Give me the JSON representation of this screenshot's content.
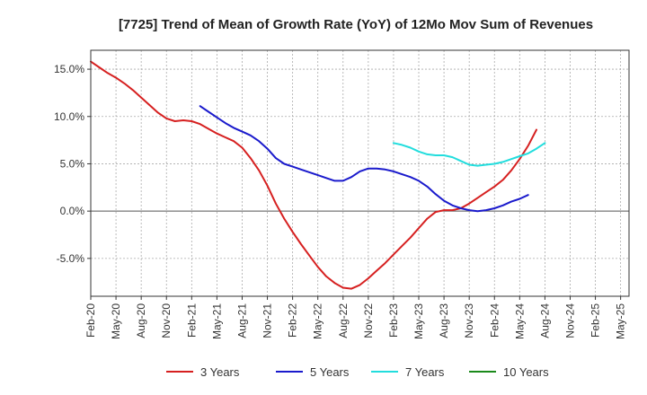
{
  "chart_data": {
    "type": "line",
    "title": "[7725]  Trend of Mean of Growth Rate (YoY) of 12Mo Mov Sum of Revenues",
    "xlabel": "",
    "ylabel": "",
    "ylim": [
      -9,
      17
    ],
    "grid": true,
    "legend_position": "bottom",
    "x_tick_labels": [
      "Feb-20",
      "May-20",
      "Aug-20",
      "Nov-20",
      "Feb-21",
      "May-21",
      "Aug-21",
      "Nov-21",
      "Feb-22",
      "May-22",
      "Aug-22",
      "Nov-22",
      "Feb-23",
      "May-23",
      "Aug-23",
      "Nov-23",
      "Feb-24",
      "May-24",
      "Aug-24",
      "Nov-24",
      "Feb-25",
      "May-25"
    ],
    "y_ticks": [
      15,
      10,
      5,
      0,
      -5
    ],
    "y_tick_labels": [
      "15.0%",
      "10.0%",
      "5.0%",
      "0.0%",
      "-5.0%"
    ],
    "colors": {
      "zero_line": "#555555",
      "grid": "#aaaaaa",
      "axis": "#333333"
    },
    "series": [
      {
        "name": "3 Years",
        "color": "#d62020",
        "start_index": 0,
        "values": [
          15.8,
          15.2,
          14.6,
          14.1,
          13.5,
          12.8,
          12.0,
          11.2,
          10.4,
          9.8,
          9.5,
          9.6,
          9.5,
          9.2,
          8.7,
          8.2,
          7.8,
          7.4,
          6.7,
          5.6,
          4.3,
          2.7,
          0.8,
          -0.8,
          -2.2,
          -3.5,
          -4.7,
          -5.9,
          -6.9,
          -7.6,
          -8.1,
          -8.2,
          -7.8,
          -7.1,
          -6.3,
          -5.5,
          -4.6,
          -3.7,
          -2.8,
          -1.8,
          -0.8,
          -0.1,
          0.1,
          0.1,
          0.3,
          0.8,
          1.4,
          2.0,
          2.6,
          3.3,
          4.3,
          5.5,
          6.9,
          8.6
        ]
      },
      {
        "name": "5 Years",
        "color": "#1a1acc",
        "start_index": 13,
        "values": [
          11.1,
          10.5,
          9.9,
          9.3,
          8.8,
          8.4,
          8.0,
          7.4,
          6.6,
          5.6,
          5.0,
          4.7,
          4.4,
          4.1,
          3.8,
          3.5,
          3.2,
          3.2,
          3.6,
          4.2,
          4.5,
          4.5,
          4.4,
          4.2,
          3.9,
          3.6,
          3.2,
          2.6,
          1.8,
          1.1,
          0.6,
          0.3,
          0.1,
          0.0,
          0.1,
          0.3,
          0.6,
          1.0,
          1.3,
          1.7
        ]
      },
      {
        "name": "7 Years",
        "color": "#22dddd",
        "start_index": 36,
        "values": [
          7.2,
          7.0,
          6.7,
          6.3,
          6.0,
          5.9,
          5.9,
          5.7,
          5.3,
          4.9,
          4.8,
          4.9,
          5.0,
          5.2,
          5.5,
          5.8,
          6.1,
          6.6,
          7.2
        ]
      },
      {
        "name": "10 Years",
        "color": "#1a8a1a",
        "start_index": 0,
        "values": []
      }
    ]
  }
}
